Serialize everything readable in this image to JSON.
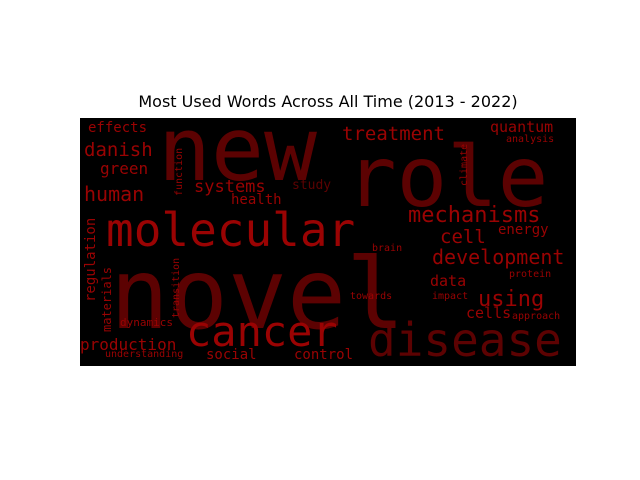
{
  "chart_data": {
    "type": "wordcloud",
    "title": "Most Used Words Across All Time (2013 - 2022)",
    "background": "#000000",
    "color_dark": "#5c0202",
    "color_mid": "#9a0303",
    "color_bright": "#d10505",
    "words": [
      {
        "text": "novel",
        "weight": 100
      },
      {
        "text": "new",
        "weight": 80
      },
      {
        "text": "role",
        "weight": 74
      },
      {
        "text": "molecular",
        "weight": 42
      },
      {
        "text": "disease",
        "weight": 40
      },
      {
        "text": "cancer",
        "weight": 38
      },
      {
        "text": "mechanisms",
        "weight": 22
      },
      {
        "text": "development",
        "weight": 19
      },
      {
        "text": "using",
        "weight": 19
      },
      {
        "text": "treatment",
        "weight": 18
      },
      {
        "text": "human",
        "weight": 18
      },
      {
        "text": "danish",
        "weight": 17
      },
      {
        "text": "systems",
        "weight": 16
      },
      {
        "text": "cell",
        "weight": 16
      },
      {
        "text": "production",
        "weight": 15
      },
      {
        "text": "quantum",
        "weight": 14
      },
      {
        "text": "energy",
        "weight": 14
      },
      {
        "text": "green",
        "weight": 14
      },
      {
        "text": "data",
        "weight": 13
      },
      {
        "text": "cells",
        "weight": 13
      },
      {
        "text": "social",
        "weight": 13
      },
      {
        "text": "control",
        "weight": 13
      },
      {
        "text": "regulation",
        "weight": 12
      },
      {
        "text": "health",
        "weight": 12
      },
      {
        "text": "study",
        "weight": 12
      },
      {
        "text": "effects",
        "weight": 12
      },
      {
        "text": "materials",
        "weight": 11
      },
      {
        "text": "understanding",
        "weight": 9
      },
      {
        "text": "dynamics",
        "weight": 9
      },
      {
        "text": "transition",
        "weight": 9
      },
      {
        "text": "function",
        "weight": 9
      },
      {
        "text": "climate",
        "weight": 9
      },
      {
        "text": "analysis",
        "weight": 9
      },
      {
        "text": "protein",
        "weight": 9
      },
      {
        "text": "approach",
        "weight": 9
      },
      {
        "text": "brain",
        "weight": 9
      },
      {
        "text": "towards",
        "weight": 9
      },
      {
        "text": "impact",
        "weight": 9
      }
    ]
  }
}
